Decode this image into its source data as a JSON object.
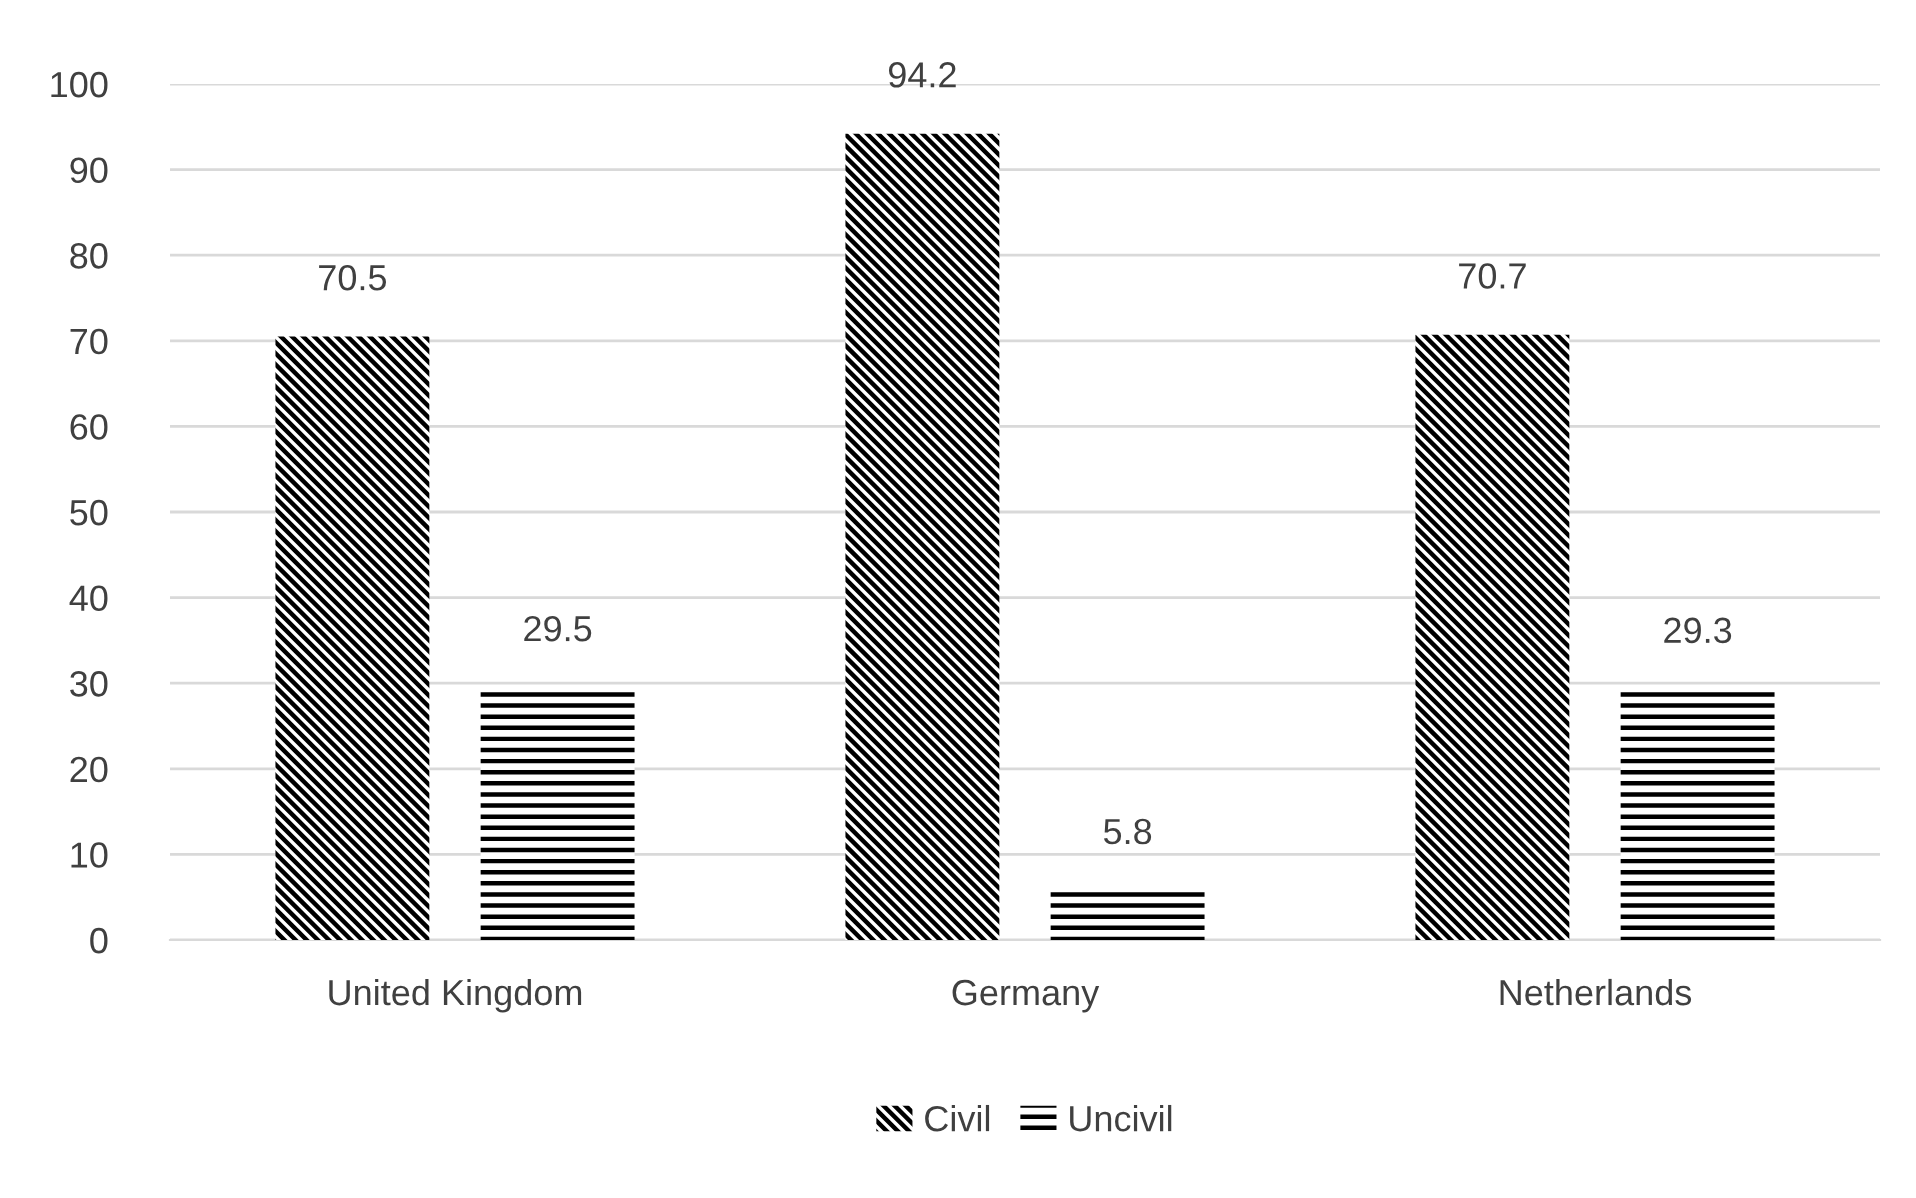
{
  "chart_data": {
    "type": "bar",
    "categories": [
      "United Kingdom",
      "Germany",
      "Netherlands"
    ],
    "series": [
      {
        "name": "Civil",
        "color": "#000000",
        "values": [
          70.5,
          94.2,
          70.7
        ]
      },
      {
        "name": "Uncivil",
        "color": "#000000",
        "values": [
          29.5,
          5.8,
          29.3
        ]
      }
    ],
    "ylim": [
      0,
      100
    ],
    "yticks": [
      0,
      10,
      20,
      30,
      40,
      50,
      60,
      70,
      80,
      90,
      100
    ],
    "grid": "y",
    "legend": "bottom",
    "data_labels": true
  }
}
